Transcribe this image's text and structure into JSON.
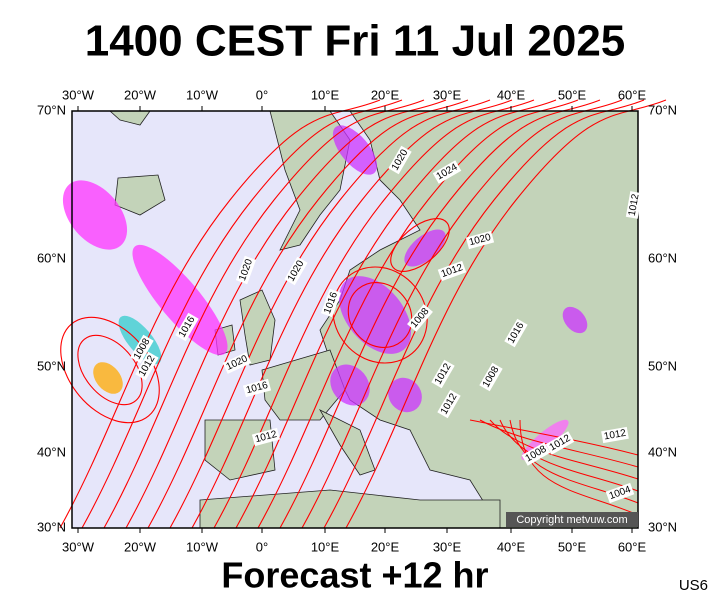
{
  "header": {
    "title": "1400 CEST Fri 11 Jul 2025"
  },
  "map": {
    "lon_labels": [
      "30°W",
      "20°W",
      "10°W",
      "0°",
      "10°E",
      "20°E",
      "30°E",
      "40°E",
      "50°E",
      "60°E"
    ],
    "lat_labels": [
      "70°N",
      "60°N",
      "50°N",
      "40°N",
      "30°N"
    ],
    "isobar_labels": [
      "1020",
      "1024",
      "1020",
      "1012",
      "1012",
      "1020",
      "1020",
      "1016",
      "1016",
      "1008",
      "1012",
      "1008",
      "1016",
      "1020",
      "1016",
      "1012",
      "1008",
      "1012",
      "1012",
      "1012",
      "1008",
      "1012",
      "1004"
    ],
    "copyright": "Copyright metvuw.com"
  },
  "footer": {
    "forecast": "Forecast +12 hr",
    "model": "US6"
  }
}
